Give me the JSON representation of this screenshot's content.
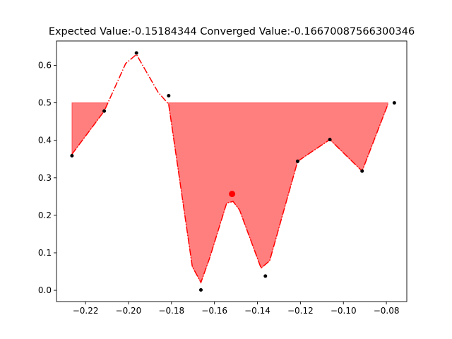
{
  "chart_data": {
    "type": "line",
    "title": "Expected Value:-0.15184344 Converged Value:-0.16670087566300346",
    "xlabel": "",
    "ylabel": "",
    "xlim": [
      -0.2335,
      -0.0705
    ],
    "ylim": [
      -0.03,
      0.665
    ],
    "grid": false,
    "legend": "none",
    "x_ticks": [
      -0.22,
      -0.2,
      -0.18,
      -0.16,
      -0.14,
      -0.12,
      -0.1,
      -0.08
    ],
    "x_tick_labels": [
      "−0.22",
      "−0.20",
      "−0.18",
      "−0.16",
      "−0.14",
      "−0.12",
      "−0.10",
      "−0.08"
    ],
    "y_ticks": [
      0.0,
      0.1,
      0.2,
      0.3,
      0.4,
      0.5,
      0.6
    ],
    "y_tick_labels": [
      "0.0",
      "0.1",
      "0.2",
      "0.3",
      "0.4",
      "0.5",
      "0.6"
    ],
    "threshold": 0.5,
    "points": {
      "x": [
        -0.2263,
        -0.2113,
        -0.1963,
        -0.1813,
        -0.1663,
        -0.1513,
        -0.1363,
        -0.1213,
        -0.1063,
        -0.0913,
        -0.0763
      ],
      "y": [
        0.359,
        0.478,
        0.633,
        0.519,
        0.001,
        0.256,
        0.038,
        0.344,
        0.402,
        0.318,
        0.5
      ]
    },
    "curve": {
      "x": [
        -0.2263,
        -0.2113,
        -0.2013,
        -0.1963,
        -0.1863,
        -0.1813,
        -0.1703,
        -0.1663,
        -0.1623,
        -0.1543,
        -0.1513,
        -0.1483,
        -0.1383,
        -0.1363,
        -0.1343,
        -0.1213,
        -0.1063,
        -0.0913,
        -0.0793
      ],
      "y": [
        0.363,
        0.478,
        0.605,
        0.629,
        0.529,
        0.496,
        0.063,
        0.021,
        0.085,
        0.233,
        0.237,
        0.214,
        0.059,
        0.069,
        0.079,
        0.344,
        0.402,
        0.318,
        0.496
      ]
    },
    "expected": {
      "x": -0.1518,
      "y": 0.257
    },
    "colors": {
      "line": "#ff0000",
      "fill": "#ff0000",
      "point": "#000000",
      "expected_marker": "#ff0000",
      "axes": "#000000"
    }
  }
}
